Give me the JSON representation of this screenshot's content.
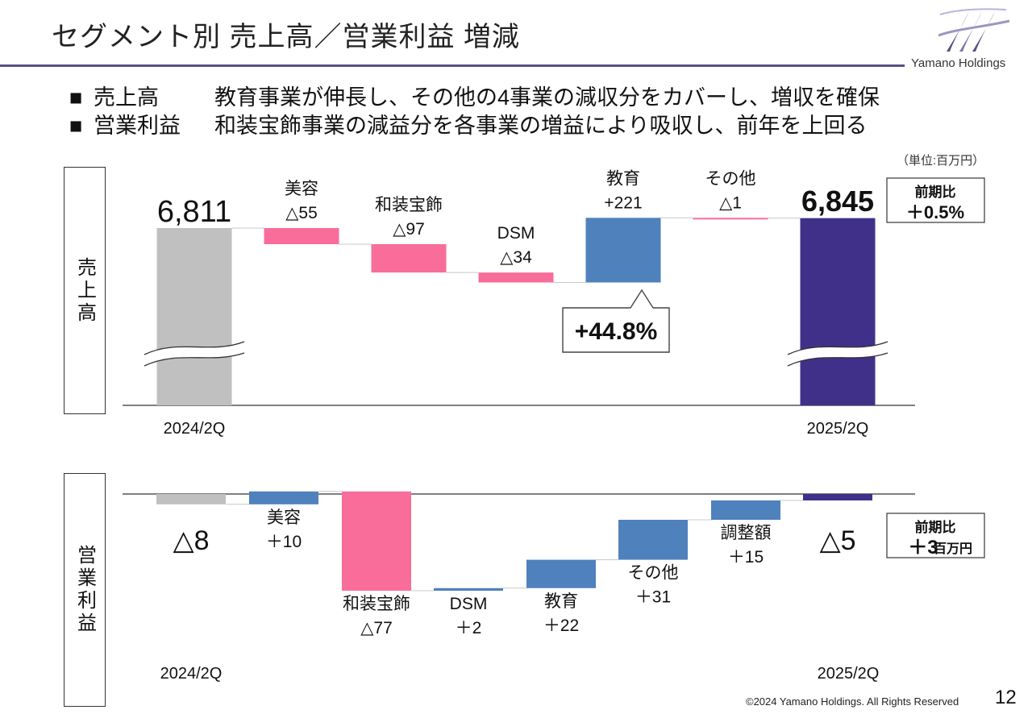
{
  "header": {
    "title": "セグメント別 売上高／営業利益 増減",
    "logo_text": "Yamano Holdings"
  },
  "bullets": [
    {
      "marker": "■",
      "label": "売上高",
      "text": "教育事業が伸長し、その他の4事業の減収分をカバーし、増収を確保"
    },
    {
      "marker": "■",
      "label": "営業利益",
      "text": "和装宝飾事業の減益分を各事業の増益により吸収し、前年を上回る"
    }
  ],
  "unit_note": "（単位:百万円）",
  "colors": {
    "base_prev": "#c0c0c0",
    "base_curr": "#40308a",
    "decrease": "#f86d9a",
    "increase": "#4f81bd",
    "accent": "#5b4f86"
  },
  "chart_data": [
    {
      "type": "waterfall",
      "title": "売上高",
      "units": "百万円",
      "start": {
        "label": "2024/2Q",
        "value": 6811,
        "value_text": "6,811"
      },
      "end": {
        "label": "2025/2Q",
        "value": 6845,
        "value_text": "6,845"
      },
      "steps": [
        {
          "name": "美容",
          "delta": -55,
          "delta_text": "△55"
        },
        {
          "name": "和装宝飾",
          "delta": -97,
          "delta_text": "△97"
        },
        {
          "name": "DSM",
          "delta": -34,
          "delta_text": "△34"
        },
        {
          "name": "教育",
          "delta": 221,
          "delta_text": "+221"
        },
        {
          "name": "その他",
          "delta": -1,
          "delta_text": "△1"
        }
      ],
      "axis_break": true,
      "callout": "+44.8%",
      "comparison": {
        "label": "前期比",
        "value": "＋0.5%"
      }
    },
    {
      "type": "waterfall",
      "title": "営業利益",
      "units": "百万円",
      "start": {
        "label": "2024/2Q",
        "value": -8,
        "value_text": "△8"
      },
      "end": {
        "label": "2025/2Q",
        "value": -5,
        "value_text": "△5"
      },
      "steps": [
        {
          "name": "美容",
          "delta": 10,
          "delta_text": "＋10"
        },
        {
          "name": "和装宝飾",
          "delta": -77,
          "delta_text": "△77"
        },
        {
          "name": "DSM",
          "delta": 2,
          "delta_text": "＋2"
        },
        {
          "name": "教育",
          "delta": 22,
          "delta_text": "＋22"
        },
        {
          "name": "その他",
          "delta": 31,
          "delta_text": "＋31"
        },
        {
          "name": "調整額",
          "delta": 15,
          "delta_text": "＋15"
        }
      ],
      "comparison": {
        "label": "前期比",
        "value": "＋3",
        "value_unit": "百万円"
      }
    }
  ],
  "footer": {
    "copyright": "©2024 Yamano Holdings. All Rights Reserved",
    "page_number": "12"
  }
}
